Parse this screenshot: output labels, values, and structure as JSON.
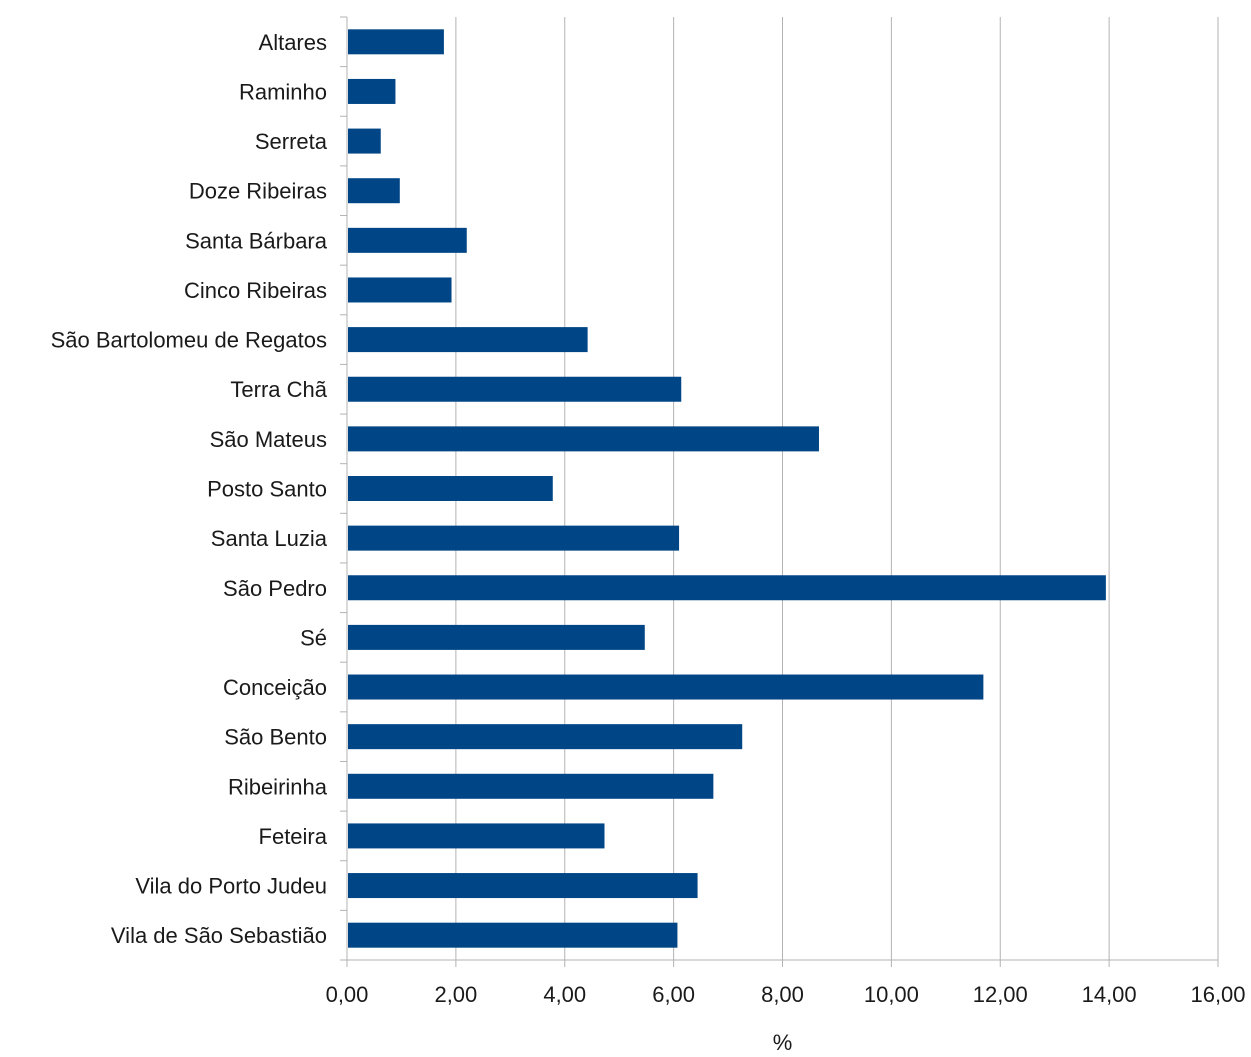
{
  "chart_data": {
    "type": "bar",
    "orientation": "horizontal",
    "categories": [
      "Altares",
      "Raminho",
      "Serreta",
      "Doze Ribeiras",
      "Santa Bárbara",
      "Cinco Ribeiras",
      "São Bartolomeu de Regatos",
      "Terra Chã",
      "São Mateus",
      "Posto Santo",
      "Santa Luzia",
      "São Pedro",
      "Sé",
      "Conceição",
      "São Bento",
      "Ribeirinha",
      "Feteira",
      "Vila do Porto Judeu",
      "Vila de São Sebastião"
    ],
    "values": [
      1.78,
      0.89,
      0.62,
      0.97,
      2.2,
      1.92,
      4.42,
      6.14,
      8.67,
      3.78,
      6.1,
      13.94,
      5.47,
      11.69,
      7.26,
      6.73,
      4.73,
      6.44,
      6.07
    ],
    "xlabel": "%",
    "ylabel": "",
    "xlim": [
      0,
      16
    ],
    "x_ticks": [
      "0,00",
      "2,00",
      "4,00",
      "6,00",
      "8,00",
      "10,00",
      "12,00",
      "14,00",
      "16,00"
    ],
    "grid": "vertical",
    "legend": "none",
    "bar_color": "#004586",
    "grid_color": "#b3b3b3"
  }
}
